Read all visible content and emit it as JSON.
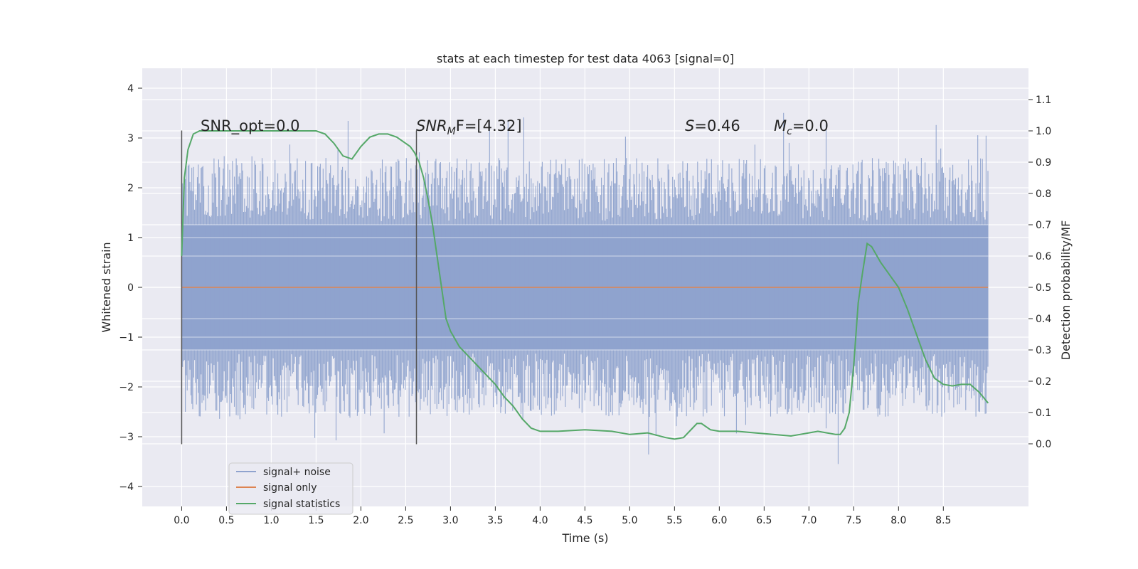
{
  "chart_data": {
    "type": "line",
    "title": "stats at each timestep for test data 4063 [signal=0]",
    "xlabel": "Time (s)",
    "ylabel_left": "Whitened strain",
    "ylabel_right": "Detection probability/MF",
    "xlim": [
      -0.44,
      9.45
    ],
    "ylim_left": [
      -4.4,
      4.4
    ],
    "ylim_right": [
      -0.2,
      1.2
    ],
    "xticks": [
      "0.0",
      "0.5",
      "1.0",
      "1.5",
      "2.0",
      "2.5",
      "3.0",
      "3.5",
      "4.0",
      "4.5",
      "5.0",
      "5.5",
      "6.0",
      "6.5",
      "7.0",
      "7.5",
      "8.0",
      "8.5"
    ],
    "yticks_left": [
      "−4",
      "−3",
      "−2",
      "−1",
      "0",
      "1",
      "2",
      "3",
      "4"
    ],
    "yticks_right": [
      "0.0",
      "0.1",
      "0.2",
      "0.3",
      "0.4",
      "0.5",
      "0.6",
      "0.7",
      "0.8",
      "0.9",
      "1.0",
      "1.1"
    ],
    "grid": true,
    "colors": {
      "background": "#eaeaf2",
      "grid": "#ffffff",
      "noise": "#8fa3ce",
      "signal": "#dd8452",
      "stats": "#55a868",
      "vline": "#555555"
    },
    "annotations": {
      "snr_opt": "SNR_opt=0.0",
      "snr_mf_name": "SNR",
      "snr_mf_sub": "M",
      "snr_mf_rest": "F=[4.32]",
      "s_name": "S",
      "s_value": "=0.46",
      "mc_name": "M",
      "mc_sub": "c",
      "mc_value": "=0.0"
    },
    "vlines": [
      {
        "x": 0.0,
        "y_range": [
          -3.15,
          3.15
        ]
      },
      {
        "x": 2.62,
        "y_range": [
          -3.15,
          3.15
        ]
      }
    ],
    "noise_band": {
      "x_range": [
        0.0,
        9.0
      ],
      "dense_amplitude": 1.9,
      "typical_peaks": [
        2.6,
        -2.6
      ],
      "extreme_peaks": [
        4.0,
        -3.9
      ]
    },
    "series": [
      {
        "name": "signal+ noise",
        "axis": "left"
      },
      {
        "name": "signal only",
        "axis": "left",
        "x": [
          0.0,
          9.0
        ],
        "y": [
          0.0,
          0.0
        ]
      },
      {
        "name": "signal statistics",
        "axis": "right",
        "x": [
          0.0,
          0.03,
          0.07,
          0.13,
          0.2,
          0.3,
          0.5,
          0.8,
          1.0,
          1.2,
          1.4,
          1.5,
          1.6,
          1.7,
          1.8,
          1.9,
          2.0,
          2.1,
          2.2,
          2.3,
          2.4,
          2.5,
          2.55,
          2.6,
          2.65,
          2.7,
          2.75,
          2.8,
          2.85,
          2.9,
          2.95,
          3.0,
          3.1,
          3.2,
          3.3,
          3.4,
          3.5,
          3.6,
          3.7,
          3.8,
          3.9,
          4.0,
          4.2,
          4.5,
          4.8,
          5.0,
          5.2,
          5.4,
          5.5,
          5.6,
          5.7,
          5.75,
          5.8,
          5.9,
          6.0,
          6.2,
          6.4,
          6.6,
          6.8,
          6.9,
          7.0,
          7.1,
          7.2,
          7.3,
          7.35,
          7.4,
          7.45,
          7.5,
          7.55,
          7.6,
          7.65,
          7.7,
          7.8,
          7.9,
          8.0,
          8.1,
          8.2,
          8.3,
          8.4,
          8.5,
          8.6,
          8.7,
          8.8,
          8.9,
          9.0
        ],
        "y": [
          0.6,
          0.85,
          0.94,
          0.99,
          1.0,
          1.0,
          1.0,
          1.0,
          1.0,
          1.0,
          1.0,
          1.0,
          0.99,
          0.96,
          0.92,
          0.91,
          0.95,
          0.98,
          0.99,
          0.99,
          0.98,
          0.96,
          0.95,
          0.93,
          0.9,
          0.85,
          0.78,
          0.7,
          0.6,
          0.5,
          0.4,
          0.36,
          0.31,
          0.28,
          0.25,
          0.22,
          0.19,
          0.15,
          0.12,
          0.08,
          0.05,
          0.04,
          0.04,
          0.045,
          0.04,
          0.03,
          0.035,
          0.02,
          0.015,
          0.02,
          0.05,
          0.065,
          0.065,
          0.045,
          0.04,
          0.04,
          0.035,
          0.03,
          0.025,
          0.03,
          0.035,
          0.04,
          0.035,
          0.03,
          0.03,
          0.05,
          0.1,
          0.25,
          0.45,
          0.55,
          0.64,
          0.63,
          0.58,
          0.54,
          0.5,
          0.43,
          0.35,
          0.27,
          0.21,
          0.19,
          0.185,
          0.19,
          0.19,
          0.165,
          0.13
        ]
      }
    ],
    "legend": {
      "position": "lower-left",
      "entries": [
        "signal+ noise",
        "signal only",
        "signal statistics"
      ]
    }
  }
}
